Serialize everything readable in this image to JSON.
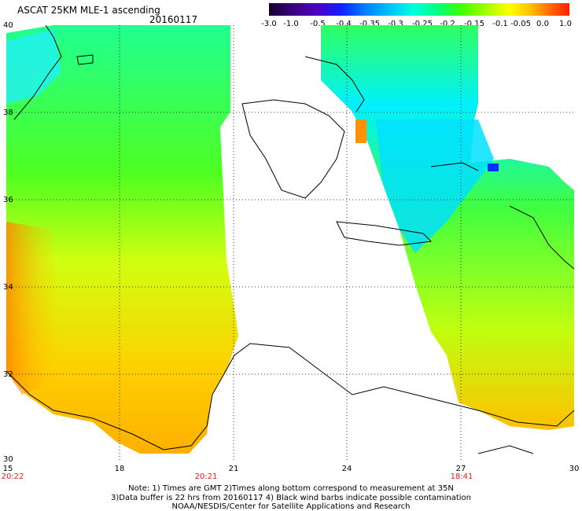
{
  "header": {
    "title": "ASCAT 25KM MLE-1 ascending",
    "date": "20160117"
  },
  "colorbar": {
    "labels": [
      "-3.0",
      "-1.0",
      "-0.5",
      "-0.4",
      "-0.35",
      "-0.3",
      "-0.25",
      "-0.2",
      "-0.15",
      "-0.1",
      "-0.05",
      "0.0",
      "1.0"
    ],
    "colors": [
      "#1a0030",
      "#3a0080",
      "#5000c0",
      "#1020ff",
      "#0080ff",
      "#00c0ff",
      "#00ffe0",
      "#00ff80",
      "#40ff00",
      "#a0ff00",
      "#ffff00",
      "#ffc000",
      "#ff7000",
      "#ff2000"
    ]
  },
  "axes": {
    "lat_labels": [
      "40",
      "38",
      "36",
      "34",
      "32",
      "30"
    ],
    "lon_labels": [
      "15",
      "18",
      "21",
      "24",
      "27",
      "30"
    ],
    "times": [
      "20:22",
      "20:21",
      "18:41"
    ]
  },
  "notes": {
    "line1": "Note: 1) Times are GMT 2)Times along bottom correspond to measurement at 35N",
    "line2": "3)Data buffer is 22 hrs from 20160117 4) Black wind barbs indicate possible contamination",
    "line3": "NOAA/NESDIS/Center for Satellite Applications and Research"
  },
  "colors": {
    "land": "#ffffff",
    "coast": "#000000",
    "grid": "#000000",
    "time_label": "#e02020"
  }
}
